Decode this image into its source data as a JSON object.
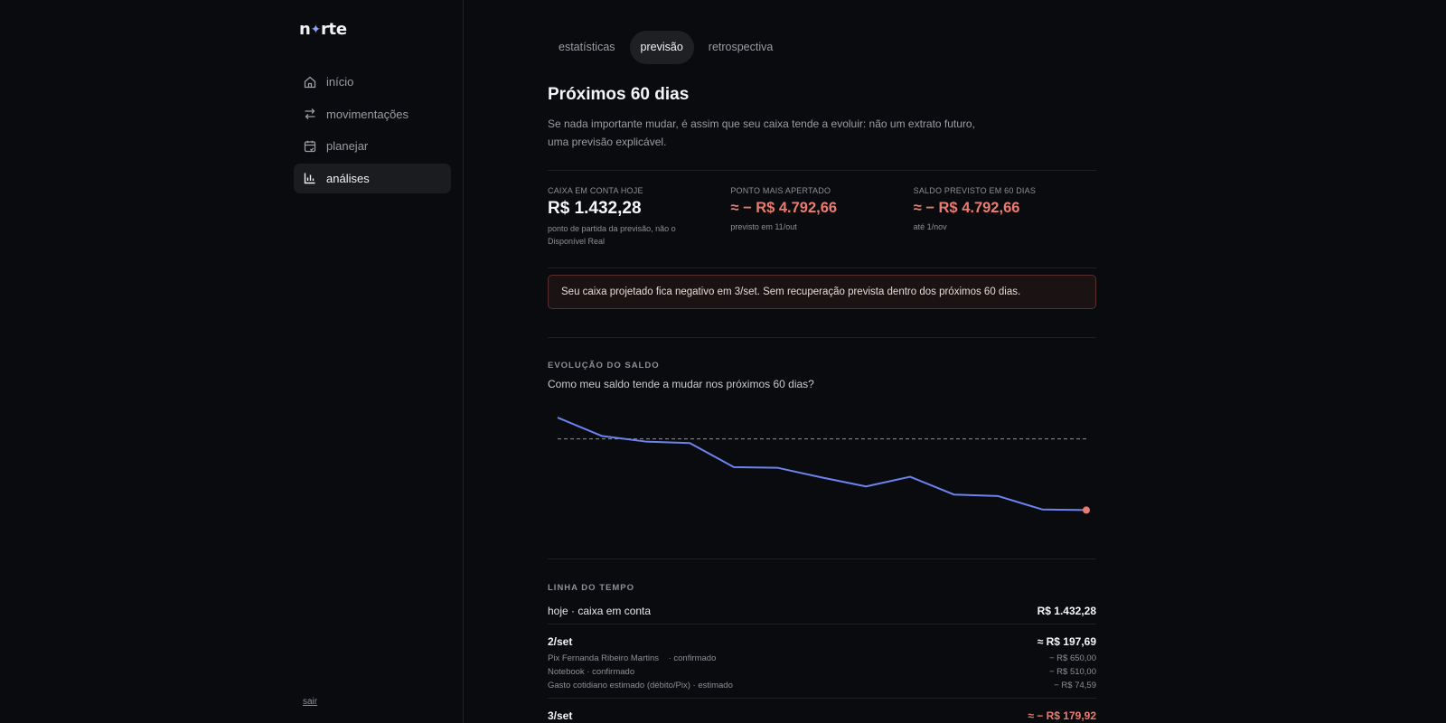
{
  "app": {
    "logo": {
      "left": "n",
      "star": "✦",
      "right": "rte"
    },
    "logout_label": "sair"
  },
  "sidebar": {
    "items": [
      {
        "label": "início",
        "icon": "home-icon",
        "active": false
      },
      {
        "label": "movimentações",
        "icon": "transfer-icon",
        "active": false
      },
      {
        "label": "planejar",
        "icon": "calendar-icon",
        "active": false
      },
      {
        "label": "análises",
        "icon": "bar-chart-icon",
        "active": true
      }
    ]
  },
  "tabs": [
    {
      "label": "estatísticas",
      "active": false
    },
    {
      "label": "previsão",
      "active": true
    },
    {
      "label": "retrospectiva",
      "active": false
    }
  ],
  "header": {
    "title": "Próximos 60 dias",
    "description": "Se nada importante mudar, é assim que seu caixa tende a evoluir: não um extrato futuro, uma previsão explicável."
  },
  "stats": [
    {
      "label": "CAIXA EM CONTA HOJE",
      "value": "R$ 1.432,28",
      "note": "ponto de partida da previsão, não o Disponível Real",
      "negative": false
    },
    {
      "label": "PONTO MAIS APERTADO",
      "value": "≈ − R$ 4.792,66",
      "note": "previsto em 11/out",
      "negative": true
    },
    {
      "label": "SALDO PREVISTO EM 60 DIAS",
      "value": "≈ − R$ 4.792,66",
      "note": "até 1/nov",
      "negative": true
    }
  ],
  "alert": {
    "text": "Seu caixa projetado fica negativo em 3/set. Sem recuperação prevista dentro dos próximos 60 dias."
  },
  "chart_section": {
    "label": "EVOLUÇÃO DO SALDO",
    "question": "Como meu saldo tende a mudar nos próximos 60 dias?"
  },
  "chart_data": {
    "type": "line",
    "series": [
      {
        "values": [
          1432.28,
          197.69,
          -179.92,
          -280,
          -1900,
          -1950,
          -2600,
          -3200,
          -2550,
          -3750,
          -3850,
          -4750,
          -4792.66
        ]
      }
    ],
    "zero_line": true,
    "zero_line_style": "dashed",
    "line_color": "#6a85f0",
    "endpoint_color": "#ec7b6d",
    "ylim": [
      -5800,
      1800
    ],
    "grid": false
  },
  "timeline": {
    "label": "LINHA DO TEMPO",
    "today": {
      "label": "hoje · caixa em conta",
      "amount": "R$ 1.432,28"
    },
    "groups": [
      {
        "date": "2/set",
        "amount": "≈ R$ 197,69",
        "negative": false,
        "items": [
          {
            "description": "Pix Fernanda Ribeiro Martins    · confirmado",
            "amount": "− R$ 650,00"
          },
          {
            "description": "Notebook · confirmado",
            "amount": "− R$ 510,00"
          },
          {
            "description": "Gasto cotidiano estimado (débito/Pix) · estimado",
            "amount": "− R$ 74,59"
          }
        ]
      },
      {
        "date": "3/set",
        "amount": "≈ − R$ 179,92",
        "negative": true,
        "items": []
      }
    ]
  }
}
